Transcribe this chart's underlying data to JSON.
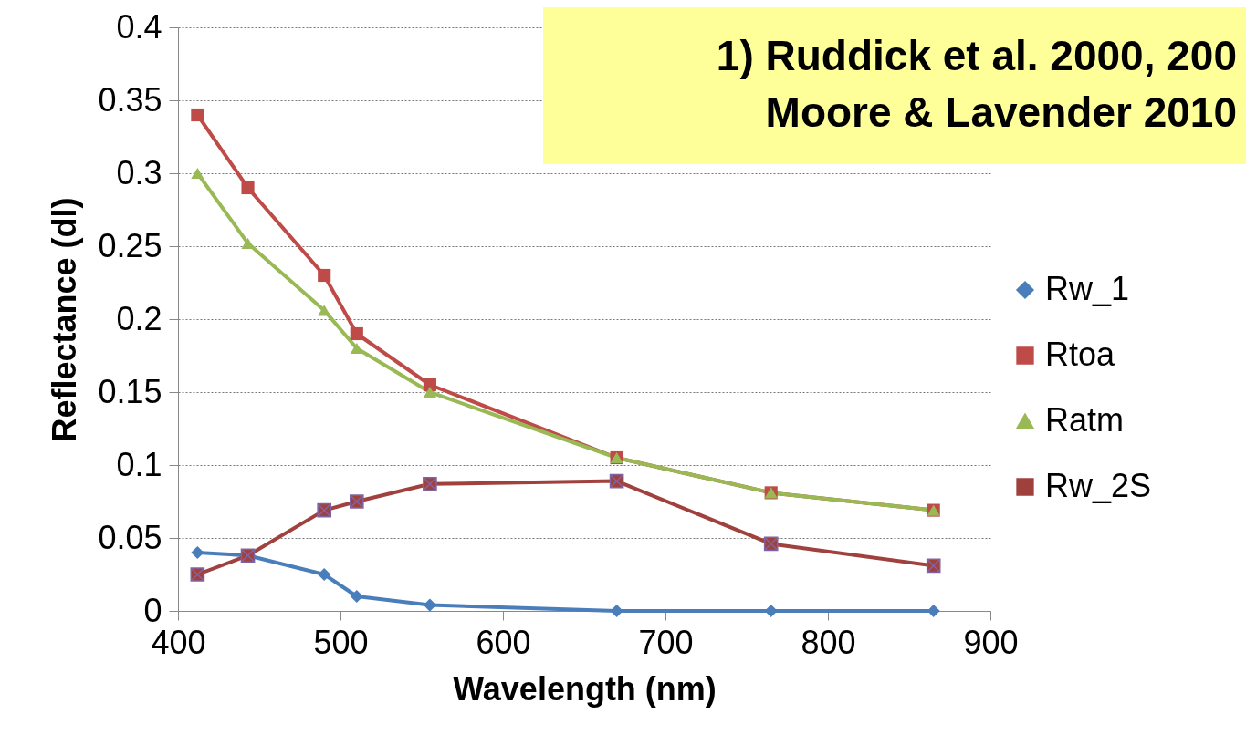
{
  "chart_data": {
    "type": "line",
    "title": "1) Ruddick et al. 2000, 200",
    "subtitle": "Moore & Lavender 2010",
    "xlabel": "Wavelength (nm)",
    "ylabel": "Reflectance (dl)",
    "x": [
      412,
      443,
      490,
      510,
      555,
      670,
      765,
      865
    ],
    "series": [
      {
        "name": "Rw_1",
        "color": "#4a7ebb",
        "marker": "diamond",
        "values": [
          0.04,
          0.038,
          0.025,
          0.01,
          0.004,
          0,
          0,
          0
        ]
      },
      {
        "name": "Rtoa",
        "color": "#be4b48",
        "marker": "square",
        "values": [
          0.34,
          0.29,
          0.23,
          0.19,
          0.155,
          0.105,
          0.081,
          0.069
        ]
      },
      {
        "name": "Ratm",
        "color": "#98b954",
        "marker": "triangle",
        "values": [
          0.3,
          0.252,
          0.206,
          0.18,
          0.15,
          0.105,
          0.081,
          0.069
        ]
      },
      {
        "name": "Rw_2S",
        "color": "#a0413e",
        "marker": "cross",
        "values": [
          0.025,
          0.038,
          0.069,
          0.075,
          0.087,
          0.089,
          0.046,
          0.031
        ]
      }
    ],
    "xlim": [
      400,
      900
    ],
    "xticks": [
      400,
      500,
      600,
      700,
      800,
      900
    ],
    "ylim": [
      0,
      0.4
    ],
    "yticks": [
      0,
      0.05,
      0.1,
      0.15,
      0.2,
      0.25,
      0.3,
      0.35,
      0.4
    ],
    "grid": "y",
    "legend": "right",
    "line_style": "solid"
  }
}
